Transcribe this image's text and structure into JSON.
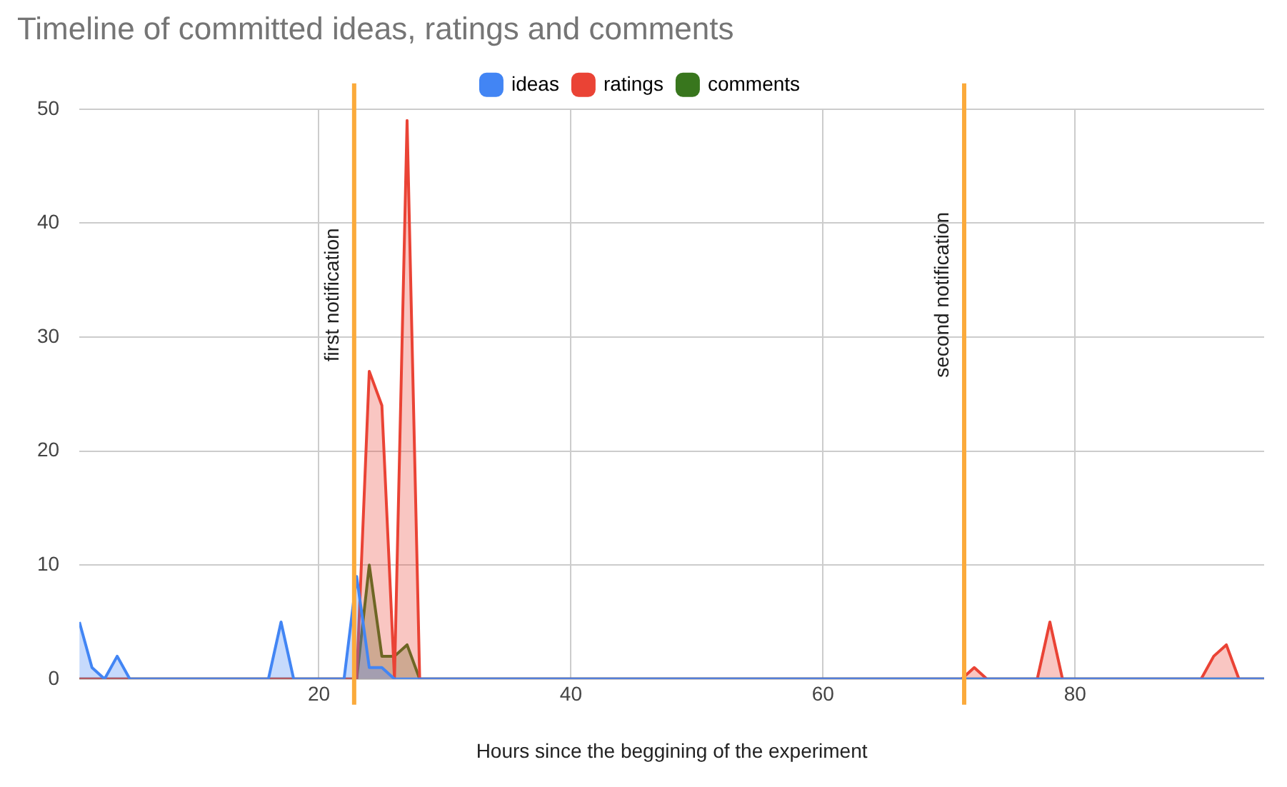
{
  "chart_data": {
    "type": "area",
    "title": "Timeline of committed ideas, ratings and comments",
    "xlabel": "Hours since the beggining of the experiment",
    "series": [
      {
        "name": "ideas",
        "color": "#4285f4",
        "x": [
          1,
          2,
          3,
          4,
          5,
          16,
          17,
          18,
          22,
          23,
          24,
          25,
          26,
          95
        ],
        "values": [
          5,
          1,
          0,
          2,
          0,
          0,
          5,
          0,
          0,
          9,
          1,
          1,
          0,
          0
        ]
      },
      {
        "name": "ratings",
        "color": "#ea4335",
        "x": [
          1,
          23,
          24,
          25,
          26,
          27,
          28,
          71,
          72,
          73,
          77,
          78,
          79,
          90,
          91,
          92,
          93,
          95
        ],
        "values": [
          0,
          0,
          27,
          24,
          0,
          49,
          0,
          0,
          1,
          0,
          0,
          5,
          0,
          0,
          2,
          3,
          0,
          0
        ]
      },
      {
        "name": "comments",
        "color": "#38761d",
        "x": [
          1,
          23,
          24,
          25,
          26,
          27,
          28,
          95
        ],
        "values": [
          0,
          0,
          10,
          2,
          2,
          3,
          0,
          0
        ]
      }
    ],
    "xlim": [
      1,
      95
    ],
    "xticks": [
      20,
      40,
      60,
      80
    ],
    "ylim": [
      0,
      50
    ],
    "yticks": [
      0,
      10,
      20,
      30,
      40,
      50
    ],
    "ref_lines": [
      {
        "axis": "x",
        "value": 22.8,
        "label": "first notification",
        "color": "#fbaa3b"
      },
      {
        "axis": "x",
        "value": 71.2,
        "label": "second notification",
        "color": "#fbaa3b"
      }
    ],
    "grid": true,
    "legend": "top"
  }
}
